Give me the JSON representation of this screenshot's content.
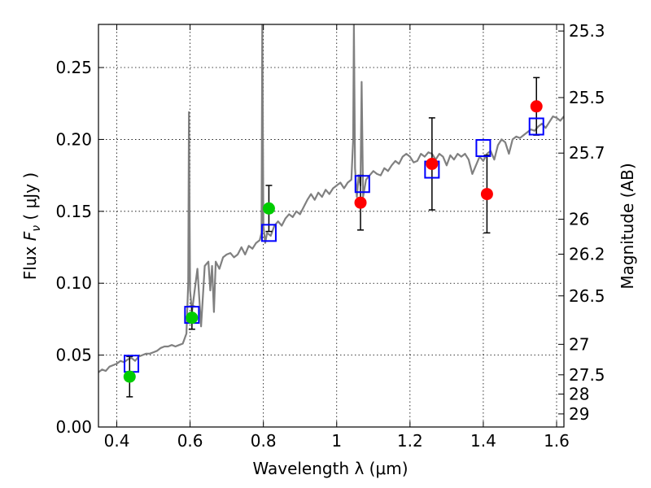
{
  "chart_data": {
    "type": "scatter",
    "xlabel": "Wavelength  λ (μm)",
    "ylabel": "Flux  F_ν  ( μJy )",
    "ylabel_parts": {
      "pre": "Flux  ",
      "sym": "F",
      "sub": "ν",
      "post": "  ( μJy )"
    },
    "y2label": "Magnitude (AB)",
    "xlim": [
      0.35,
      1.62
    ],
    "ylim": [
      0.0,
      0.28
    ],
    "grid": true,
    "xticks": [
      {
        "v": 0.4,
        "label": "0.4"
      },
      {
        "v": 0.6,
        "label": "0.6"
      },
      {
        "v": 0.8,
        "label": "0.8"
      },
      {
        "v": 1.0,
        "label": "1"
      },
      {
        "v": 1.2,
        "label": "1.2"
      },
      {
        "v": 1.4,
        "label": "1.4"
      },
      {
        "v": 1.6,
        "label": "1.6"
      }
    ],
    "yticks": [
      {
        "v": 0.0,
        "label": "0.00"
      },
      {
        "v": 0.05,
        "label": "0.05"
      },
      {
        "v": 0.1,
        "label": "0.10"
      },
      {
        "v": 0.15,
        "label": "0.15"
      },
      {
        "v": 0.2,
        "label": "0.20"
      },
      {
        "v": 0.25,
        "label": "0.25"
      }
    ],
    "y2ticks": [
      {
        "flux": 0.2754,
        "label": "25.3"
      },
      {
        "flux": 0.2291,
        "label": "25.5"
      },
      {
        "flux": 0.1905,
        "label": "25.7"
      },
      {
        "flux": 0.1445,
        "label": "26"
      },
      {
        "flux": 0.1202,
        "label": "26.2"
      },
      {
        "flux": 0.0912,
        "label": "26.5"
      },
      {
        "flux": 0.0575,
        "label": "27"
      },
      {
        "flux": 0.0363,
        "label": "27.5"
      },
      {
        "flux": 0.0229,
        "label": "28"
      },
      {
        "flux": 0.0091,
        "label": "29"
      }
    ],
    "sed_model": {
      "color": "#808080",
      "x": [
        0.35,
        0.36,
        0.37,
        0.38,
        0.39,
        0.4,
        0.41,
        0.42,
        0.43,
        0.44,
        0.45,
        0.46,
        0.47,
        0.48,
        0.49,
        0.5,
        0.51,
        0.52,
        0.53,
        0.54,
        0.55,
        0.56,
        0.57,
        0.58,
        0.59,
        0.595,
        0.597,
        0.6,
        0.605,
        0.61,
        0.62,
        0.63,
        0.64,
        0.65,
        0.655,
        0.66,
        0.665,
        0.67,
        0.68,
        0.69,
        0.7,
        0.71,
        0.72,
        0.73,
        0.74,
        0.75,
        0.76,
        0.77,
        0.78,
        0.79,
        0.795,
        0.797,
        0.8,
        0.805,
        0.81,
        0.82,
        0.83,
        0.84,
        0.85,
        0.86,
        0.87,
        0.88,
        0.89,
        0.9,
        0.91,
        0.92,
        0.93,
        0.94,
        0.95,
        0.96,
        0.97,
        0.98,
        0.99,
        1.0,
        1.01,
        1.02,
        1.03,
        1.04,
        1.045,
        1.047,
        1.05,
        1.055,
        1.06,
        1.065,
        1.068,
        1.072,
        1.08,
        1.09,
        1.1,
        1.11,
        1.12,
        1.13,
        1.14,
        1.15,
        1.16,
        1.17,
        1.18,
        1.19,
        1.2,
        1.21,
        1.22,
        1.23,
        1.24,
        1.25,
        1.26,
        1.27,
        1.28,
        1.29,
        1.3,
        1.31,
        1.32,
        1.33,
        1.34,
        1.35,
        1.36,
        1.37,
        1.38,
        1.39,
        1.4,
        1.41,
        1.42,
        1.43,
        1.44,
        1.45,
        1.46,
        1.47,
        1.48,
        1.49,
        1.5,
        1.51,
        1.52,
        1.53,
        1.54,
        1.55,
        1.56,
        1.57,
        1.58,
        1.59,
        1.6,
        1.61,
        1.62
      ],
      "y": [
        0.038,
        0.04,
        0.039,
        0.042,
        0.043,
        0.044,
        0.046,
        0.045,
        0.047,
        0.048,
        0.046,
        0.049,
        0.05,
        0.051,
        0.051,
        0.052,
        0.053,
        0.055,
        0.056,
        0.056,
        0.057,
        0.056,
        0.057,
        0.058,
        0.065,
        0.1,
        0.219,
        0.095,
        0.08,
        0.09,
        0.11,
        0.07,
        0.112,
        0.115,
        0.095,
        0.112,
        0.08,
        0.115,
        0.11,
        0.118,
        0.12,
        0.121,
        0.118,
        0.12,
        0.125,
        0.12,
        0.126,
        0.124,
        0.128,
        0.13,
        0.135,
        0.28,
        0.14,
        0.128,
        0.135,
        0.133,
        0.14,
        0.143,
        0.14,
        0.145,
        0.148,
        0.146,
        0.15,
        0.148,
        0.153,
        0.158,
        0.162,
        0.158,
        0.163,
        0.16,
        0.165,
        0.162,
        0.166,
        0.168,
        0.17,
        0.166,
        0.17,
        0.172,
        0.2,
        0.28,
        0.18,
        0.16,
        0.175,
        0.168,
        0.24,
        0.16,
        0.172,
        0.175,
        0.178,
        0.176,
        0.175,
        0.18,
        0.178,
        0.182,
        0.185,
        0.183,
        0.188,
        0.19,
        0.188,
        0.184,
        0.185,
        0.19,
        0.188,
        0.191,
        0.19,
        0.186,
        0.19,
        0.188,
        0.182,
        0.189,
        0.186,
        0.19,
        0.188,
        0.19,
        0.186,
        0.176,
        0.182,
        0.188,
        0.185,
        0.19,
        0.192,
        0.186,
        0.196,
        0.2,
        0.198,
        0.19,
        0.2,
        0.202,
        0.201,
        0.203,
        0.205,
        0.207,
        0.206,
        0.209,
        0.211,
        0.208,
        0.212,
        0.216,
        0.215,
        0.213,
        0.216
      ]
    },
    "series": [
      {
        "marker": "circle",
        "color": "#00cc00",
        "points": [
          {
            "x": 0.435,
            "y": 0.035,
            "err": 0.014
          },
          {
            "x": 0.605,
            "y": 0.076,
            "err": 0.008
          },
          {
            "x": 0.815,
            "y": 0.152,
            "err": 0.016
          }
        ]
      },
      {
        "marker": "circle",
        "color": "#ff0000",
        "points": [
          {
            "x": 1.065,
            "y": 0.156,
            "err": 0.019
          },
          {
            "x": 1.26,
            "y": 0.183,
            "err": 0.032
          },
          {
            "x": 1.41,
            "y": 0.162,
            "err": 0.027
          },
          {
            "x": 1.545,
            "y": 0.223,
            "err": 0.02
          }
        ]
      },
      {
        "marker": "open-square",
        "color": "#0000ff",
        "points": [
          {
            "x": 0.44,
            "y": 0.044
          },
          {
            "x": 0.605,
            "y": 0.078
          },
          {
            "x": 0.815,
            "y": 0.135
          },
          {
            "x": 1.07,
            "y": 0.169
          },
          {
            "x": 1.26,
            "y": 0.179
          },
          {
            "x": 1.4,
            "y": 0.194
          },
          {
            "x": 1.545,
            "y": 0.209
          }
        ]
      }
    ]
  }
}
